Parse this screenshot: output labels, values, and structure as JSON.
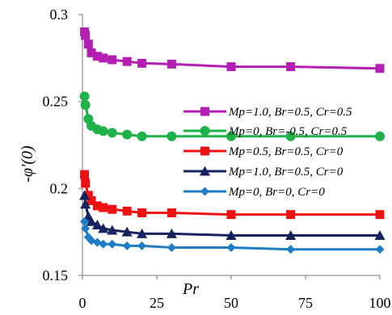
{
  "chart_data": {
    "type": "line",
    "title": "",
    "xlabel": "Pr",
    "ylabel": "-φ'(0)",
    "xlim": [
      0,
      100
    ],
    "ylim": [
      0.15,
      0.3
    ],
    "xticks": [
      "0",
      "25",
      "50",
      "75",
      "100"
    ],
    "yticks": [
      "0.15",
      "0.2",
      "0.25",
      "0.3"
    ],
    "grid": false,
    "legend_position": "right-center",
    "x": [
      0.7,
      1,
      2,
      3,
      5,
      7,
      10,
      15,
      20,
      30,
      50,
      70,
      100
    ],
    "series": [
      {
        "name": "Mp=1.0, Br=0.5, Cr=0.5",
        "color": "#b21fb2",
        "marker": "square",
        "values": [
          0.29,
          0.288,
          0.283,
          0.278,
          0.276,
          0.275,
          0.274,
          0.273,
          0.272,
          0.2715,
          0.27,
          0.27,
          0.269
        ]
      },
      {
        "name": "Mp=0, Br=-0.5, Cr=0.5",
        "color": "#1fb24a",
        "marker": "circle",
        "values": [
          0.253,
          0.248,
          0.24,
          0.236,
          0.234,
          0.233,
          0.232,
          0.231,
          0.23,
          0.23,
          0.23,
          0.23,
          0.23
        ]
      },
      {
        "name": "Mp=0.5, Br=0.5, Cr=0",
        "color": "#ee1111",
        "marker": "square",
        "values": [
          0.208,
          0.203,
          0.196,
          0.193,
          0.19,
          0.189,
          0.188,
          0.187,
          0.186,
          0.186,
          0.185,
          0.185,
          0.185
        ]
      },
      {
        "name": "Mp=1.0, Br=0.5, Cr=0",
        "color": "#16235e",
        "marker": "triangle",
        "values": [
          0.196,
          0.191,
          0.184,
          0.181,
          0.179,
          0.177,
          0.176,
          0.175,
          0.174,
          0.174,
          0.173,
          0.173,
          0.173
        ]
      },
      {
        "name": "Mp=0, Br=0, Cr=0",
        "color": "#1e7cc4",
        "marker": "diamond",
        "values": [
          0.181,
          0.177,
          0.172,
          0.17,
          0.169,
          0.168,
          0.168,
          0.167,
          0.167,
          0.166,
          0.166,
          0.165,
          0.165
        ]
      }
    ]
  }
}
